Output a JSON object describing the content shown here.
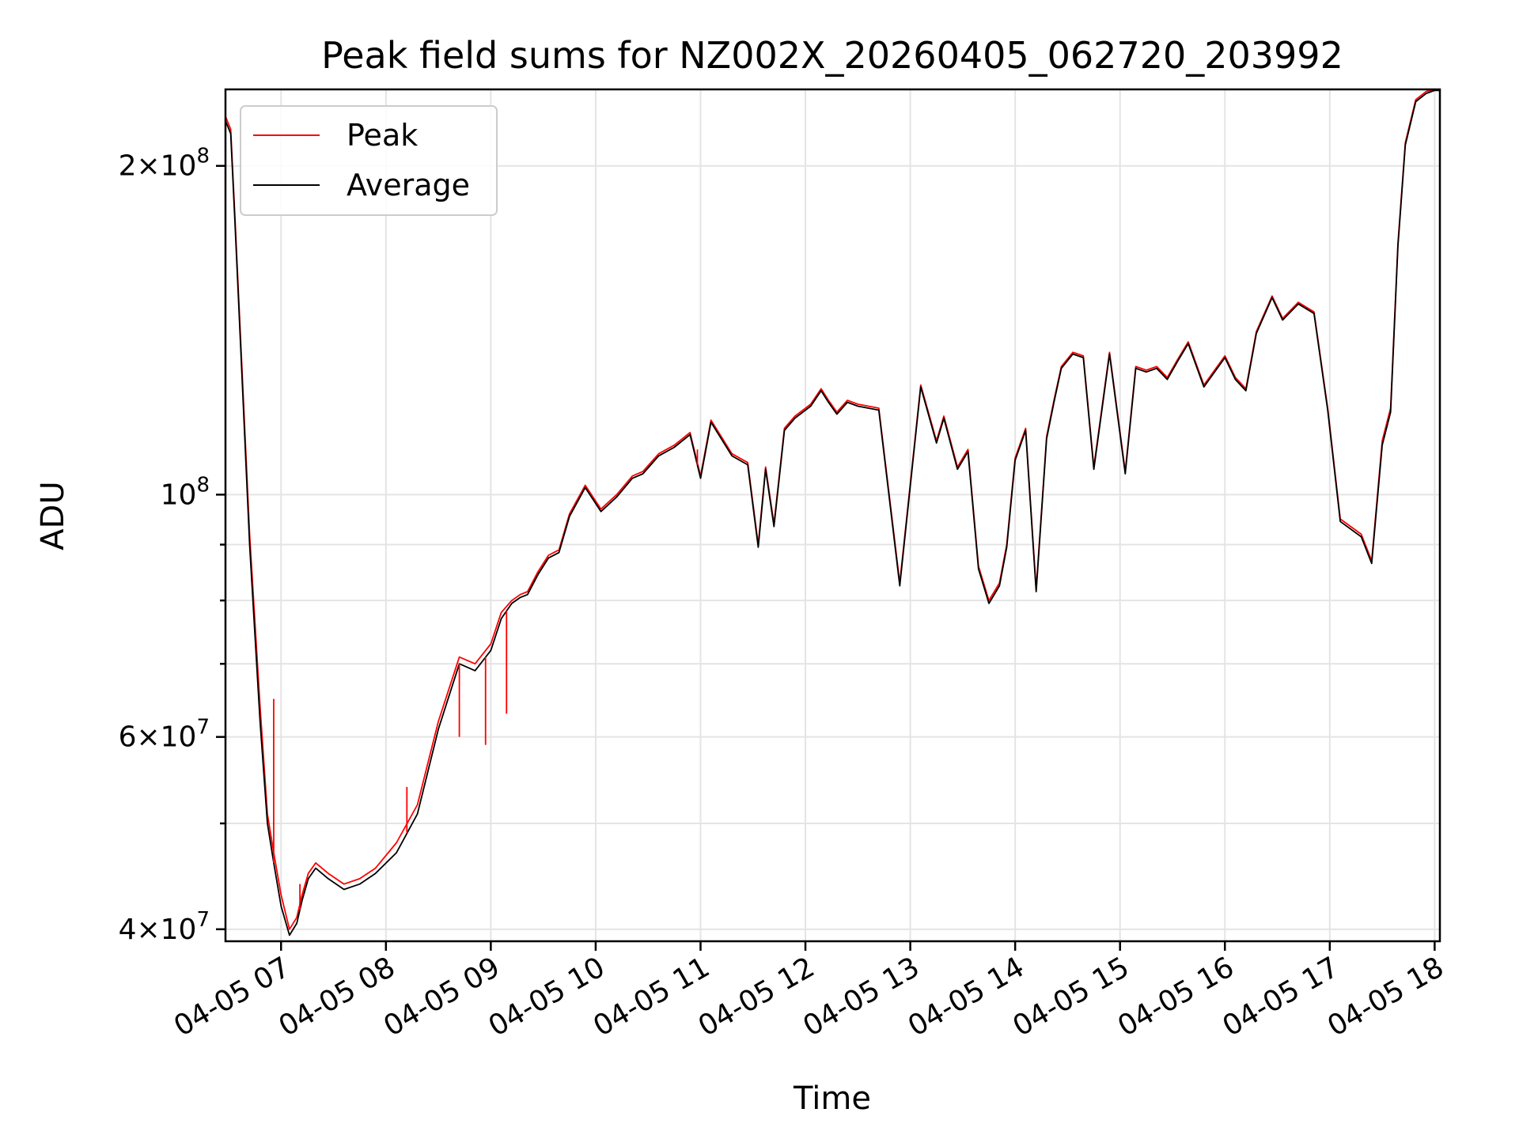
{
  "chart_data": {
    "type": "line",
    "title": "Peak field sums for NZ002X_20260405_062720_203992",
    "xlabel": "Time",
    "ylabel": "ADU",
    "yscale": "log",
    "xlim": [
      6.47,
      18.05
    ],
    "ylim": [
      39000000,
      235000000
    ],
    "grid": true,
    "legend_position": "upper-left",
    "x_tick_values": [
      7,
      8,
      9,
      10,
      11,
      12,
      13,
      14,
      15,
      16,
      17,
      18
    ],
    "x_tick_labels": [
      "04-05 07",
      "04-05 08",
      "04-05 09",
      "04-05 10",
      "04-05 11",
      "04-05 12",
      "04-05 13",
      "04-05 14",
      "04-05 15",
      "04-05 16",
      "04-05 17",
      "04-05 18"
    ],
    "y_major_ticks": [
      {
        "value": 40000000,
        "base": "4×10",
        "exp": "7"
      },
      {
        "value": 60000000,
        "base": "6×10",
        "exp": "7"
      },
      {
        "value": 100000000,
        "base": "10",
        "exp": "8"
      },
      {
        "value": 200000000,
        "base": "2×10",
        "exp": "8"
      }
    ],
    "y_minor_ticks": [
      50000000,
      70000000,
      80000000,
      90000000,
      300000000
    ],
    "series": [
      {
        "name": "Peak",
        "color": "#ff0000",
        "x": [
          6.47,
          6.52,
          6.56,
          6.62,
          6.7,
          6.8,
          6.87,
          6.93,
          7.0,
          7.08,
          7.15,
          7.2,
          7.26,
          7.33,
          7.45,
          7.6,
          7.75,
          7.9,
          8.1,
          8.3,
          8.5,
          8.7,
          8.85,
          9.0,
          9.1,
          9.2,
          9.28,
          9.35,
          9.45,
          9.55,
          9.65,
          9.75,
          9.9,
          10.05,
          10.2,
          10.35,
          10.45,
          10.6,
          10.75,
          10.9,
          11.0,
          11.1,
          11.3,
          11.45,
          11.55,
          11.62,
          11.7,
          11.8,
          11.9,
          12.05,
          12.15,
          12.22,
          12.3,
          12.4,
          12.5,
          12.7,
          12.9,
          13.1,
          13.25,
          13.32,
          13.45,
          13.55,
          13.65,
          13.75,
          13.85,
          13.92,
          14.0,
          14.1,
          14.2,
          14.3,
          14.37,
          14.44,
          14.55,
          14.65,
          14.75,
          14.9,
          15.05,
          15.15,
          15.25,
          15.35,
          15.45,
          15.55,
          15.65,
          15.8,
          16.0,
          16.1,
          16.2,
          16.3,
          16.45,
          16.55,
          16.7,
          16.85,
          16.98,
          17.1,
          17.3,
          17.4,
          17.5,
          17.58,
          17.65,
          17.72,
          17.82,
          17.92,
          18.0,
          18.05
        ],
        "y": [
          222000000,
          216000000,
          180000000,
          135000000,
          92000000,
          64000000,
          51000000,
          47000000,
          43000000,
          40000000,
          41000000,
          43000000,
          45000000,
          46000000,
          45000000,
          44000000,
          44500000,
          45500000,
          48000000,
          52000000,
          62000000,
          71000000,
          70000000,
          73000000,
          78000000,
          80000000,
          81000000,
          81500000,
          85000000,
          88000000,
          89000000,
          96000000,
          102000000,
          97000000,
          100000000,
          104000000,
          105000000,
          109000000,
          111000000,
          114000000,
          104000000,
          117000000,
          109000000,
          107000000,
          90000000,
          106000000,
          94000000,
          115000000,
          118000000,
          121000000,
          125000000,
          122000000,
          119000000,
          122000000,
          121000000,
          120000000,
          83000000,
          126000000,
          112000000,
          118000000,
          106000000,
          110000000,
          86000000,
          80000000,
          83000000,
          90000000,
          108000000,
          115000000,
          82000000,
          113000000,
          122000000,
          131000000,
          135000000,
          134000000,
          106000000,
          135000000,
          105000000,
          131000000,
          130000000,
          131000000,
          128000000,
          133000000,
          138000000,
          126000000,
          134000000,
          128000000,
          125000000,
          141000000,
          152000000,
          145000000,
          150000000,
          147000000,
          120000000,
          95000000,
          92000000,
          87000000,
          112000000,
          120000000,
          170000000,
          210000000,
          230000000,
          234000000,
          235000000,
          235000000
        ]
      },
      {
        "name": "Average",
        "color": "#000000",
        "x": [
          6.47,
          6.52,
          6.56,
          6.62,
          6.7,
          6.8,
          6.87,
          6.93,
          7.0,
          7.08,
          7.15,
          7.2,
          7.26,
          7.33,
          7.45,
          7.6,
          7.75,
          7.9,
          8.1,
          8.3,
          8.5,
          8.7,
          8.85,
          9.0,
          9.1,
          9.2,
          9.28,
          9.35,
          9.45,
          9.55,
          9.65,
          9.75,
          9.9,
          10.05,
          10.2,
          10.35,
          10.45,
          10.6,
          10.75,
          10.9,
          11.0,
          11.1,
          11.3,
          11.45,
          11.55,
          11.62,
          11.7,
          11.8,
          11.9,
          12.05,
          12.15,
          12.22,
          12.3,
          12.4,
          12.5,
          12.7,
          12.9,
          13.1,
          13.25,
          13.32,
          13.45,
          13.55,
          13.65,
          13.75,
          13.85,
          13.92,
          14.0,
          14.1,
          14.2,
          14.3,
          14.37,
          14.44,
          14.55,
          14.65,
          14.75,
          14.9,
          15.05,
          15.15,
          15.25,
          15.35,
          15.45,
          15.55,
          15.65,
          15.8,
          16.0,
          16.1,
          16.2,
          16.3,
          16.45,
          16.55,
          16.7,
          16.85,
          16.98,
          17.1,
          17.3,
          17.4,
          17.5,
          17.58,
          17.65,
          17.72,
          17.82,
          17.92,
          18.0,
          18.05
        ],
        "y": [
          220000000,
          214000000,
          178000000,
          133000000,
          90000000,
          62000000,
          50000000,
          46000000,
          42000000,
          39500000,
          40500000,
          42500000,
          44500000,
          45500000,
          44500000,
          43500000,
          44000000,
          45000000,
          47000000,
          51000000,
          61000000,
          70000000,
          69000000,
          72000000,
          77000000,
          79500000,
          80500000,
          81000000,
          84500000,
          87500000,
          88500000,
          95500000,
          101500000,
          96500000,
          99500000,
          103500000,
          104500000,
          108500000,
          110500000,
          113500000,
          103500000,
          116500000,
          108500000,
          106500000,
          89500000,
          105500000,
          93500000,
          114500000,
          117500000,
          120500000,
          124500000,
          121500000,
          118500000,
          121500000,
          120500000,
          119500000,
          82500000,
          125500000,
          111500000,
          117500000,
          105500000,
          109500000,
          85500000,
          79500000,
          82500000,
          89500000,
          107500000,
          114500000,
          81500000,
          112500000,
          121500000,
          130500000,
          134500000,
          133500000,
          105500000,
          134500000,
          104500000,
          130500000,
          129500000,
          130500000,
          127500000,
          132500000,
          137500000,
          125500000,
          133500000,
          127500000,
          124500000,
          140500000,
          151500000,
          144500000,
          149500000,
          146500000,
          119500000,
          94500000,
          91500000,
          86500000,
          111000000,
          119000000,
          169000000,
          209000000,
          229000000,
          233000000,
          234500000,
          234500000
        ]
      }
    ],
    "peak_spikes": [
      {
        "x": 6.93,
        "y": 65000000
      },
      {
        "x": 7.18,
        "y": 44000000
      },
      {
        "x": 8.2,
        "y": 54000000
      },
      {
        "x": 8.7,
        "y": 60000000
      },
      {
        "x": 8.95,
        "y": 59000000
      },
      {
        "x": 9.15,
        "y": 63000000
      },
      {
        "x": 10.97,
        "y": 110000000
      }
    ]
  }
}
